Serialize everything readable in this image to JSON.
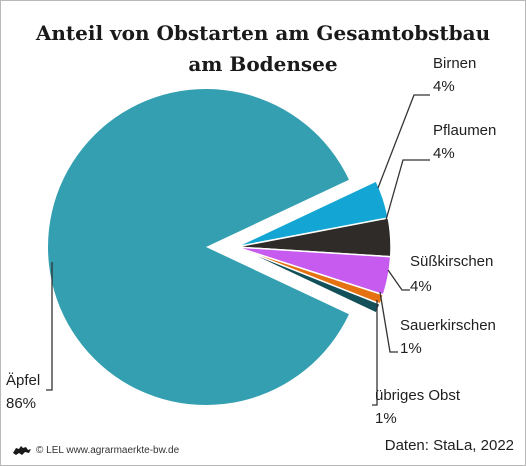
{
  "header": {
    "title_line1": "Anteil von Obstarten am Gesamtobstbau",
    "title_line2": "am Bodensee"
  },
  "footer": {
    "copyright": "© LEL www.agrarmaerkte-bw.de",
    "source": "Daten: StaLa, 2022",
    "logo_icon": "lion-icon"
  },
  "chart_data": {
    "type": "pie",
    "title": "Anteil von Obstarten am Gesamtobstbau am Bodensee",
    "unit": "%",
    "exploded_small_slices": true,
    "slices": [
      {
        "label": "Äpfel",
        "value": 86,
        "value_label": "86%",
        "color": "#339fb1"
      },
      {
        "label": "Birnen",
        "value": 4,
        "value_label": "4%",
        "color": "#13a6d4"
      },
      {
        "label": "Pflaumen",
        "value": 4,
        "value_label": "4%",
        "color": "#2e2b28"
      },
      {
        "label": "Süßkirschen",
        "value": 4,
        "value_label": "4%",
        "color": "#c75bf0"
      },
      {
        "label": "Sauerkirschen",
        "value": 1,
        "value_label": "1%",
        "color": "#e57212"
      },
      {
        "label": "übriges Obst",
        "value": 1,
        "value_label": "1%",
        "color": "#12505a"
      }
    ]
  }
}
